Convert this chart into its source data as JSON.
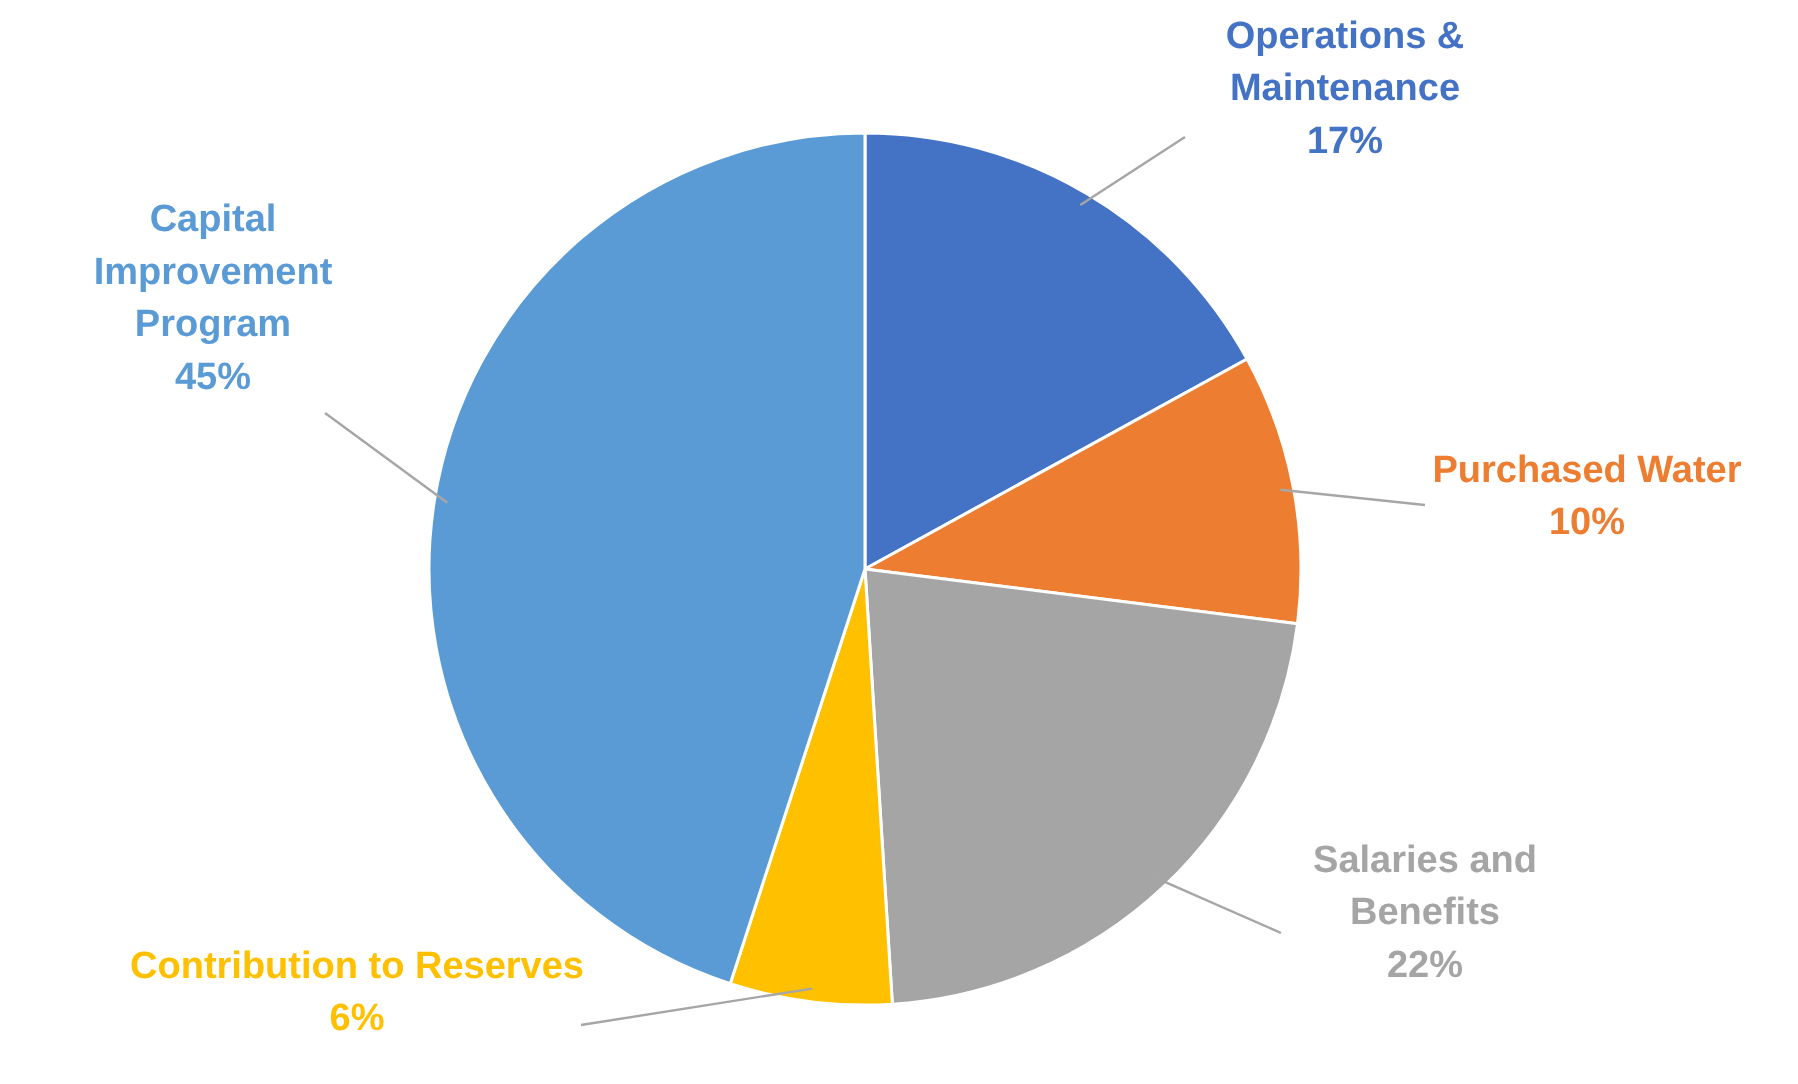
{
  "chart_data": {
    "type": "pie",
    "categories": [
      "Operations & Maintenance",
      "Purchased Water",
      "Salaries and Benefits",
      "Contribution to Reserves",
      "Capital Improvement Program"
    ],
    "values": [
      17,
      10,
      22,
      6,
      45
    ],
    "value_labels": [
      "17%",
      "10%",
      "22%",
      "6%",
      "45%"
    ],
    "colors": [
      "#4472c4",
      "#ed7d31",
      "#a5a5a5",
      "#ffc000",
      "#5b9bd5"
    ],
    "legend": false
  }
}
